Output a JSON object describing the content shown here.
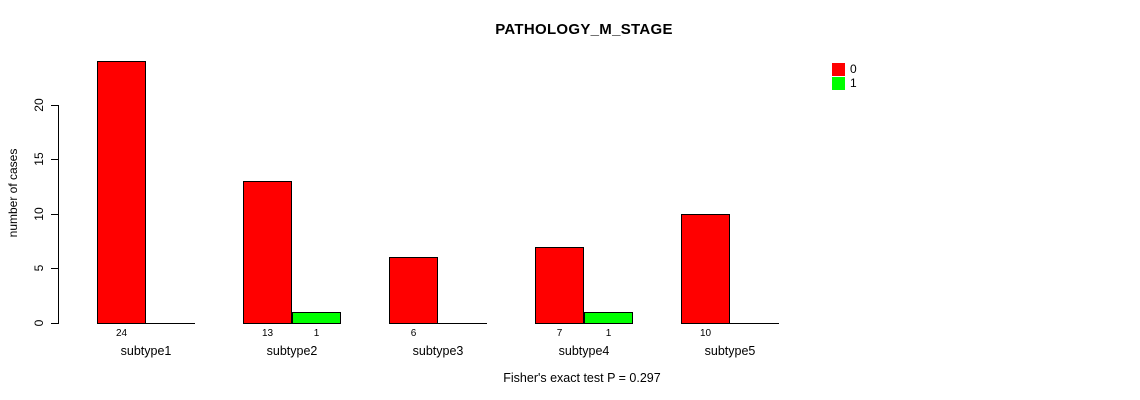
{
  "title": "PATHOLOGY_M_STAGE",
  "footer": "Fisher's exact test P = 0.297",
  "y_axis": {
    "label": "number of cases",
    "ticks": [
      0,
      5,
      10,
      15,
      20
    ]
  },
  "legend": {
    "entries": [
      {
        "label": "0",
        "color": "#ff0000"
      },
      {
        "label": "1",
        "color": "#00ff00"
      }
    ]
  },
  "chart_data": {
    "type": "bar",
    "title": "PATHOLOGY_M_STAGE",
    "categories": [
      "subtype1",
      "subtype2",
      "subtype3",
      "subtype4",
      "subtype5"
    ],
    "series": [
      {
        "name": "0",
        "color": "#ff0000",
        "values": [
          24,
          13,
          6,
          7,
          10
        ]
      },
      {
        "name": "1",
        "color": "#00ff00",
        "values": [
          0,
          1,
          0,
          1,
          0
        ]
      }
    ],
    "xlabel": "",
    "ylabel": "number of cases",
    "yticks": [
      0,
      5,
      10,
      15,
      20
    ],
    "ylim": [
      0,
      24
    ],
    "grid": false,
    "legend_position": "top-right",
    "bar_value_labels_shown": true,
    "zero_values_unlabeled": true,
    "annotation": "Fisher's exact test P = 0.297"
  }
}
